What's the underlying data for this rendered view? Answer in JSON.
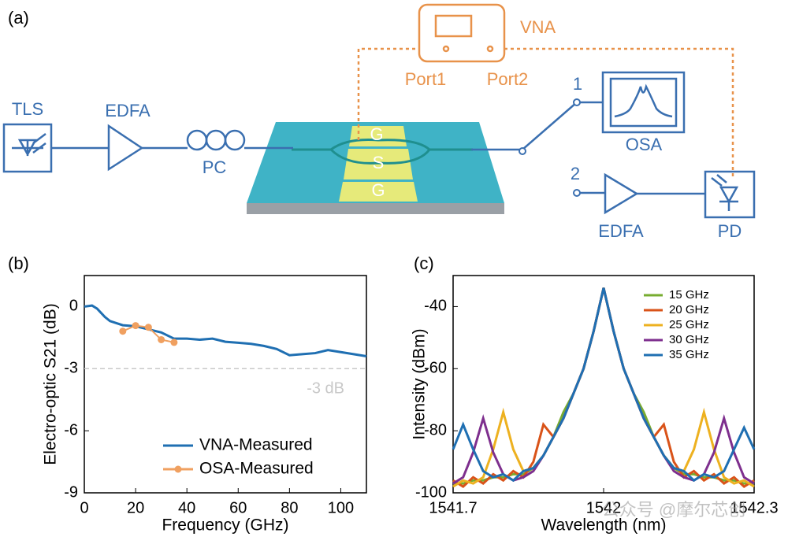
{
  "diagram": {
    "panel_label": "(a)",
    "labels": {
      "tls": "TLS",
      "edfa1": "EDFA",
      "pc": "PC",
      "g1": "G",
      "s": "S",
      "g2": "G",
      "vna": "VNA",
      "port1": "Port1",
      "port2": "Port2",
      "out1": "1",
      "osa": "OSA",
      "out2": "2",
      "edfa2": "EDFA",
      "pd": "PD"
    }
  },
  "watermark": "公众号 @摩尔芯创",
  "chart_data": [
    {
      "type": "line",
      "panel_label": "(b)",
      "xlabel": "Frequency (GHz)",
      "ylabel": "Electro-optic S21 (dB)",
      "xlim": [
        0,
        110
      ],
      "xticks": [
        0,
        20,
        40,
        60,
        80,
        100
      ],
      "ylim": [
        -9,
        1.5
      ],
      "yticks": [
        0,
        -3,
        -6,
        -9
      ],
      "legend": "lower right",
      "hline": {
        "value": -3,
        "label": "-3 dB",
        "color": "#c8c8c8"
      },
      "series": [
        {
          "name": "VNA-Measured",
          "color": "#1f6fb2",
          "markers": false,
          "x": [
            0,
            3,
            5,
            8,
            10,
            15,
            20,
            25,
            30,
            35,
            40,
            45,
            50,
            55,
            60,
            65,
            70,
            75,
            80,
            85,
            90,
            95,
            100,
            105,
            110
          ],
          "values": [
            0,
            0.05,
            -0.1,
            -0.5,
            -0.7,
            -0.9,
            -0.95,
            -1.1,
            -1.25,
            -1.55,
            -1.55,
            -1.6,
            -1.55,
            -1.7,
            -1.75,
            -1.8,
            -1.9,
            -2.05,
            -2.35,
            -2.3,
            -2.25,
            -2.1,
            -2.2,
            -2.3,
            -2.4
          ]
        },
        {
          "name": "OSA-Measured",
          "color": "#f0a060",
          "markers": true,
          "x": [
            15,
            20,
            25,
            30,
            35
          ],
          "values": [
            -1.19,
            -0.92,
            -1.0,
            -1.6,
            -1.73
          ]
        }
      ]
    },
    {
      "type": "line",
      "panel_label": "(c)",
      "xlabel": "Wavelength (nm)",
      "ylabel": "Intensity (dBm)",
      "xlim": [
        1541.7,
        1542.3
      ],
      "xticks": [
        1541.7,
        1542,
        1542.3
      ],
      "ylim": [
        -100,
        -30
      ],
      "yticks": [
        -40,
        -60,
        -80,
        -100
      ],
      "legend": "upper right",
      "x": [
        1541.7,
        1541.72,
        1541.74,
        1541.76,
        1541.78,
        1541.8,
        1541.82,
        1541.84,
        1541.86,
        1541.88,
        1541.9,
        1541.92,
        1541.94,
        1541.96,
        1541.98,
        1542,
        1542.02,
        1542.04,
        1542.06,
        1542.08,
        1542.1,
        1542.12,
        1542.14,
        1542.16,
        1542.18,
        1542.2,
        1542.22,
        1542.24,
        1542.26,
        1542.28,
        1542.3
      ],
      "series": [
        {
          "name": "15 GHz",
          "color": "#77ac30",
          "values": [
            -97,
            -97,
            -96,
            -96,
            -95,
            -95,
            -94,
            -94,
            -92,
            -88,
            -82,
            -74,
            -68,
            -60,
            -48,
            -34,
            -48,
            -60,
            -68,
            -74,
            -82,
            -88,
            -92,
            -94,
            -94,
            -95,
            -95,
            -96,
            -96,
            -97,
            -97
          ]
        },
        {
          "name": "20 GHz",
          "color": "#d95319",
          "values": [
            -96,
            -98,
            -95,
            -97,
            -94,
            -96,
            -93,
            -95,
            -90,
            -78,
            -82,
            -76,
            -68,
            -60,
            -48,
            -34,
            -48,
            -60,
            -68,
            -76,
            -82,
            -78,
            -90,
            -95,
            -93,
            -96,
            -94,
            -97,
            -95,
            -98,
            -96
          ]
        },
        {
          "name": "25 GHz",
          "color": "#edb120",
          "values": [
            -98,
            -96,
            -97,
            -95,
            -86,
            -74,
            -86,
            -93,
            -92,
            -88,
            -82,
            -76,
            -68,
            -60,
            -48,
            -34,
            -48,
            -60,
            -68,
            -76,
            -82,
            -88,
            -92,
            -93,
            -86,
            -74,
            -86,
            -95,
            -97,
            -96,
            -98
          ]
        },
        {
          "name": "30 GHz",
          "color": "#7e2f8e",
          "values": [
            -97,
            -95,
            -87,
            -76,
            -87,
            -94,
            -96,
            -95,
            -93,
            -88,
            -82,
            -76,
            -68,
            -60,
            -48,
            -34,
            -48,
            -60,
            -68,
            -76,
            -82,
            -88,
            -93,
            -95,
            -96,
            -94,
            -87,
            -76,
            -87,
            -95,
            -97
          ]
        },
        {
          "name": "35 GHz",
          "color": "#1f6fb2",
          "values": [
            -86,
            -78,
            -86,
            -93,
            -95,
            -94,
            -96,
            -93,
            -92,
            -88,
            -82,
            -76,
            -68,
            -60,
            -48,
            -34,
            -48,
            -60,
            -68,
            -76,
            -82,
            -88,
            -92,
            -93,
            -96,
            -94,
            -95,
            -93,
            -86,
            -79,
            -86
          ]
        }
      ]
    }
  ]
}
